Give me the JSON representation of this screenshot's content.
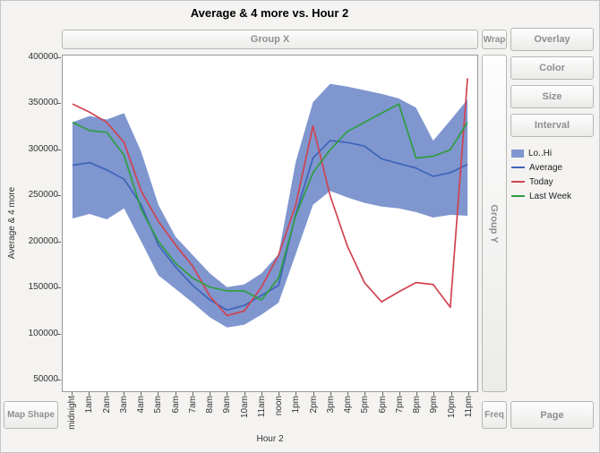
{
  "title": "Average & 4 more vs. Hour 2",
  "zones": {
    "group_x": "Group X",
    "wrap": "Wrap",
    "overlay": "Overlay",
    "color": "Color",
    "size": "Size",
    "interval": "Interval",
    "group_y": "Group Y",
    "map_shape": "Map Shape",
    "freq": "Freq",
    "page": "Page"
  },
  "legend": {
    "items": [
      {
        "label": "Lo..Hi",
        "type": "band",
        "color": "#7f96cf"
      },
      {
        "label": "Average",
        "type": "line",
        "color": "#3e64b8"
      },
      {
        "label": "Today",
        "type": "line",
        "color": "#d0434f"
      },
      {
        "label": "Last Week",
        "type": "line",
        "color": "#2f9e41"
      }
    ]
  },
  "chart_data": {
    "type": "line",
    "title": "Average & 4 more vs. Hour 2",
    "xlabel": "Hour 2",
    "ylabel": "Average & 4 more",
    "grid": false,
    "legend_position": "right",
    "x": [
      "midnight",
      "1am",
      "2am",
      "3am",
      "4am",
      "5am",
      "6am",
      "7am",
      "8am",
      "9am",
      "10am",
      "11am",
      "noon",
      "1pm",
      "2pm",
      "3pm",
      "4pm",
      "5pm",
      "6pm",
      "7pm",
      "8pm",
      "9pm",
      "10pm",
      "11pm"
    ],
    "ylim": [
      50000,
      400000
    ],
    "yticks": [
      50000,
      100000,
      150000,
      200000,
      250000,
      300000,
      350000,
      400000
    ],
    "band": {
      "name": "Lo..Hi",
      "color": "#7f96cf",
      "hi": [
        330000,
        337000,
        333000,
        340000,
        298000,
        240000,
        205000,
        185000,
        165000,
        150000,
        153000,
        165000,
        186000,
        287000,
        352000,
        372000,
        369000,
        365000,
        361000,
        356000,
        346000,
        310000,
        332000,
        355000
      ],
      "lo": [
        225000,
        230000,
        224000,
        236000,
        200000,
        163000,
        148000,
        133000,
        117000,
        106000,
        109000,
        120000,
        133000,
        186000,
        240000,
        255000,
        248000,
        242000,
        238000,
        236000,
        232000,
        226000,
        229000,
        228000
      ]
    },
    "series": [
      {
        "name": "Average",
        "color": "#3e64b8",
        "values": [
          283000,
          286000,
          278000,
          268000,
          240000,
          196000,
          172000,
          152000,
          136000,
          125000,
          130000,
          141000,
          152000,
          230000,
          291000,
          310000,
          308000,
          304000,
          290000,
          285000,
          280000,
          271000,
          275000,
          284000
        ]
      },
      {
        "name": "Today",
        "color": "#d0434f",
        "values": [
          350000,
          341000,
          330000,
          308000,
          255000,
          222000,
          196000,
          173000,
          140000,
          119000,
          124000,
          150000,
          185000,
          240000,
          326000,
          250000,
          195000,
          155000,
          134000,
          145000,
          155000,
          153000,
          128000,
          378000
        ]
      },
      {
        "name": "Last Week",
        "color": "#2f9e41",
        "values": [
          330000,
          321000,
          319000,
          294000,
          235000,
          200000,
          176000,
          160000,
          150000,
          146000,
          146000,
          136000,
          160000,
          228000,
          275000,
          300000,
          320000,
          330000,
          340000,
          350000,
          291000,
          293000,
          300000,
          330000
        ]
      }
    ]
  }
}
